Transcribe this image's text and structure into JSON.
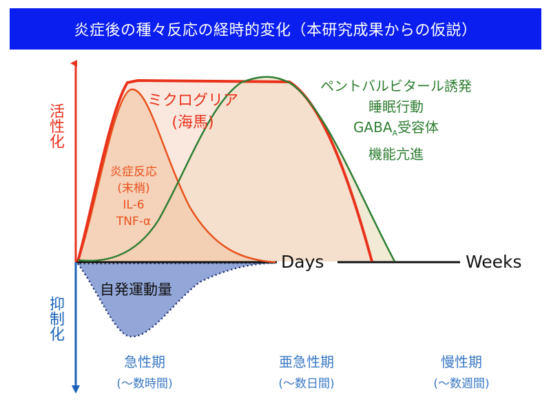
{
  "title": "炎症後の種々反応の経時的変化（本研究成果からの仮説）",
  "y_axis": {
    "up_label": "活性化",
    "down_label": "抑制化"
  },
  "curves": {
    "microglia": {
      "line1": "ミクログリア",
      "line2": "(海馬)"
    },
    "peripheral": {
      "line1": "炎症反応",
      "line2": "(末梢)",
      "line3": "IL-6",
      "line4": "TNF-α"
    },
    "gaba": {
      "line1": "ペントバルビタール誘発",
      "line2": "睡眠行動",
      "line3_main": "GABA",
      "line3_sub": "A",
      "line3_rest": "受容体",
      "line4": "機能亢進"
    },
    "locomotion": {
      "label": "自発運動量"
    }
  },
  "timeline": {
    "days": "Days",
    "weeks": "Weeks"
  },
  "phases": [
    {
      "name": "急性期",
      "duration": "(～数時間)"
    },
    {
      "name": "亜急性期",
      "duration": "(～数日間)"
    },
    {
      "name": "慢性期",
      "duration": "(～数週間)"
    }
  ],
  "colors": {
    "banner_bg": "#0a1ef0",
    "activation": "#e8321c",
    "suppression": "#1a63b8",
    "microglia": "#e8321c",
    "peripheral": "#e8521c",
    "gaba": "#2e7d32",
    "locomotion_fill": "#7f97d1",
    "phase_text": "#3a78c4"
  }
}
